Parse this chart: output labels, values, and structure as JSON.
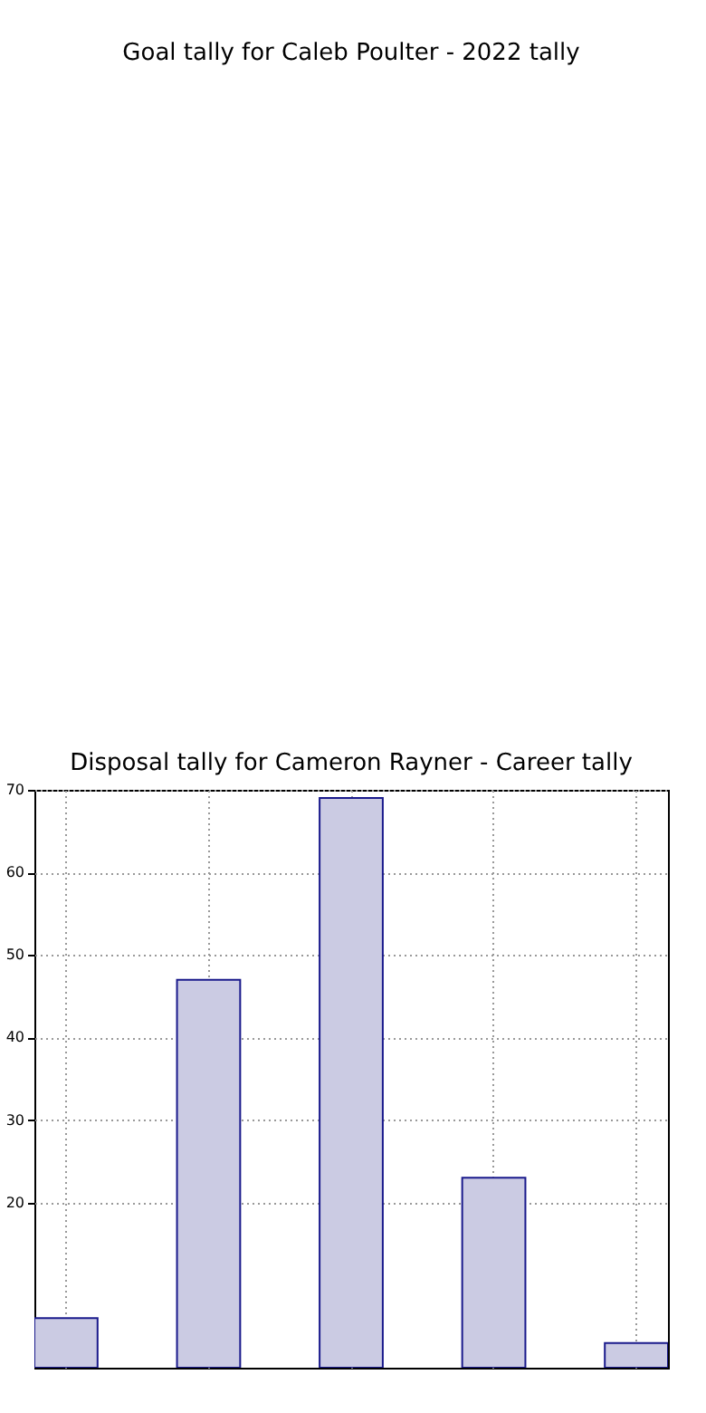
{
  "chart_data": [
    {
      "type": "other",
      "title": "Goal tally for Caleb Poulter - 2022 tally"
    },
    {
      "type": "bar",
      "title": "Disposal tally for Cameron Rayner - Career tally",
      "categories": [
        null,
        null,
        null,
        null,
        null
      ],
      "values": [
        6,
        47,
        69,
        23,
        3
      ],
      "color": "#cbcbe3",
      "ylim": [
        0,
        70
      ],
      "yticks": [
        20,
        30,
        40,
        50,
        60,
        70
      ],
      "grid": true,
      "tick_labels": "y"
    }
  ]
}
